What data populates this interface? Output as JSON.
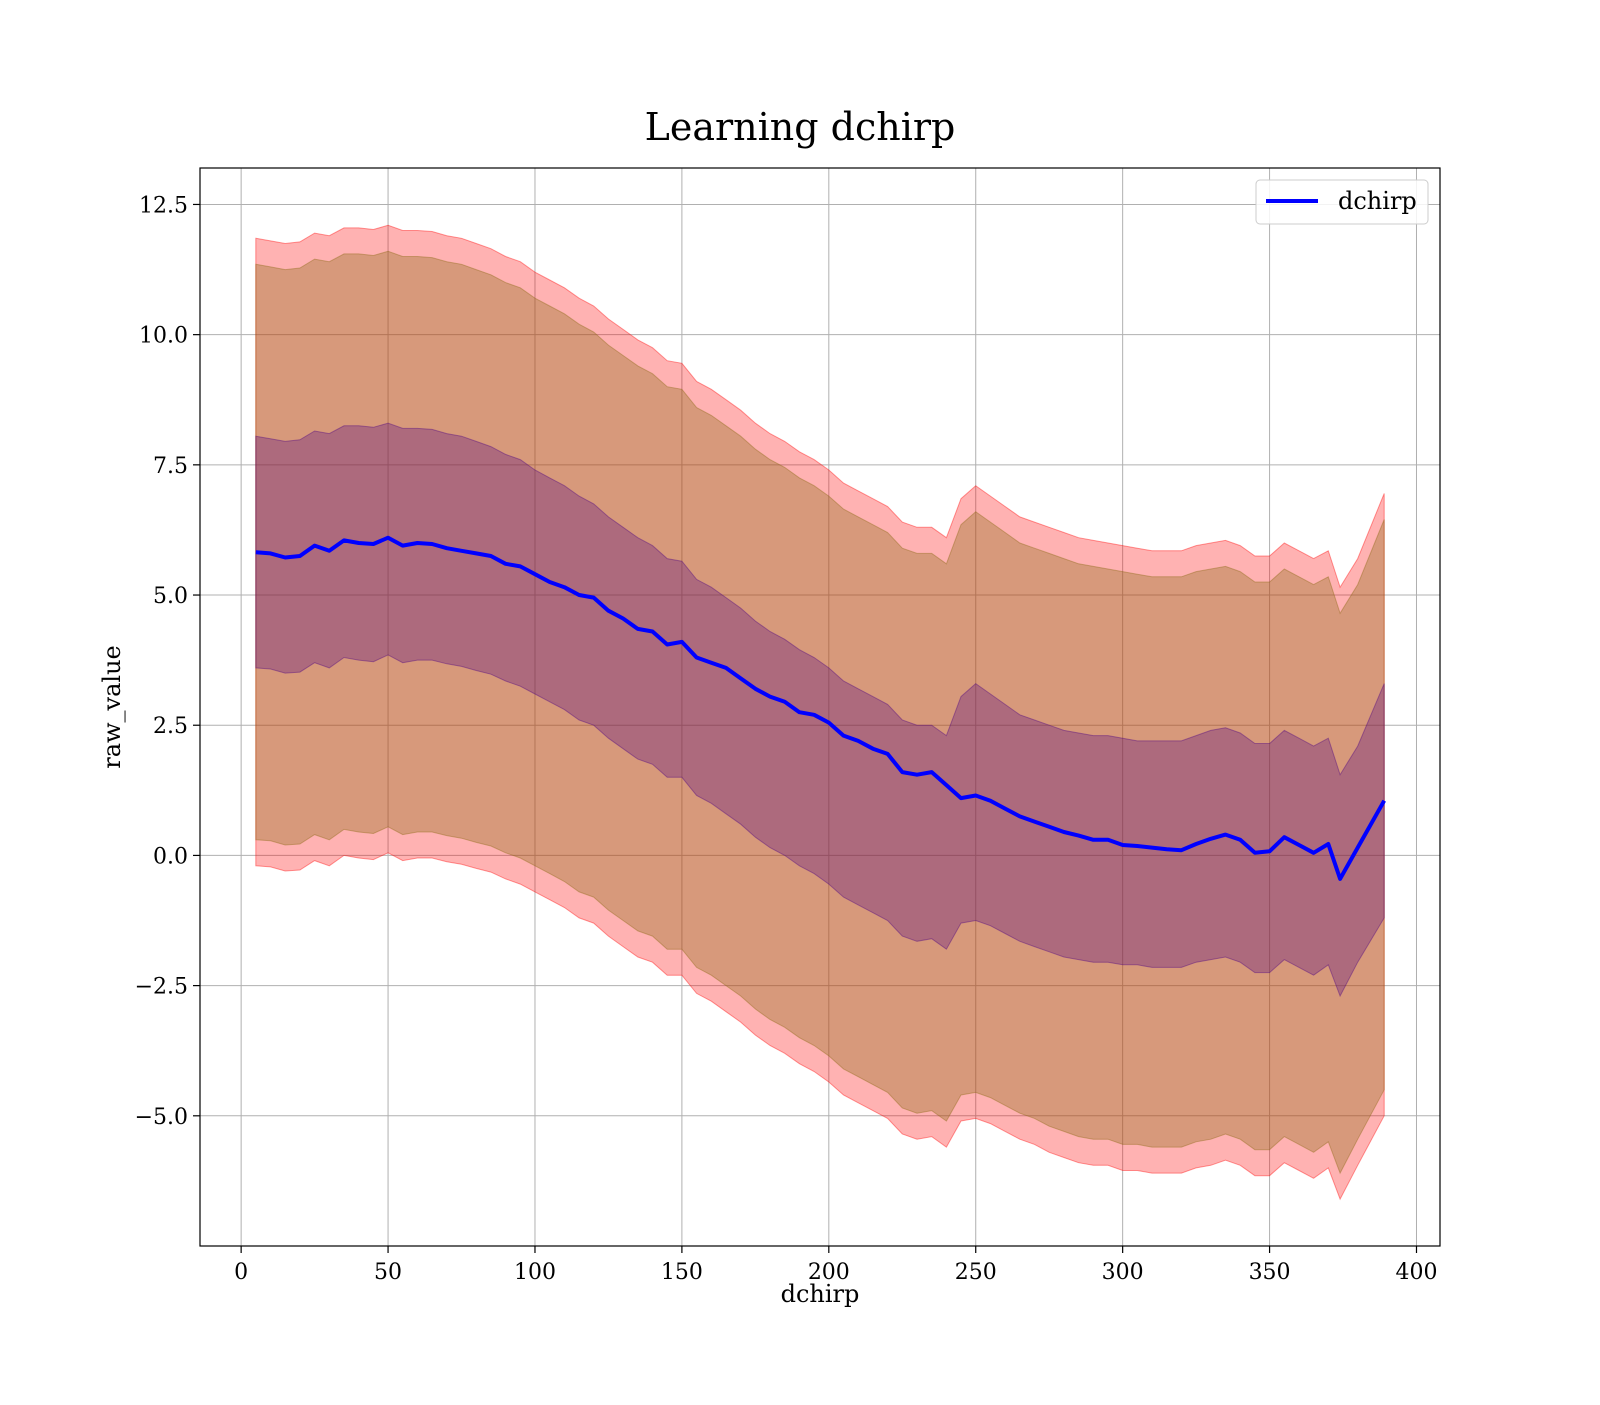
{
  "chart_data": {
    "type": "line",
    "title": "Learning dchirp",
    "xlabel": "dchirp",
    "ylabel": "raw_value",
    "xlim": [
      -14,
      408
    ],
    "ylim": [
      -7.5,
      13.2
    ],
    "xticks": [
      0,
      50,
      100,
      150,
      200,
      250,
      300,
      350,
      400
    ],
    "xtick_labels": [
      "0",
      "50",
      "100",
      "150",
      "200",
      "250",
      "300",
      "350",
      "400"
    ],
    "yticks": [
      -5.0,
      -2.5,
      0.0,
      2.5,
      5.0,
      7.5,
      10.0,
      12.5
    ],
    "ytick_labels": [
      "−5.0",
      "−2.5",
      "0.0",
      "2.5",
      "5.0",
      "7.5",
      "10.0",
      "12.5"
    ],
    "grid": true,
    "legend": {
      "position": "top-right",
      "entries": [
        "dchirp"
      ]
    },
    "colors": {
      "line": "#0000ff",
      "outer_band": "#ff0000",
      "mid_band": "#8b6914",
      "inner_band": "#4b0082"
    },
    "x": [
      5,
      10,
      15,
      20,
      25,
      30,
      35,
      40,
      45,
      50,
      55,
      60,
      65,
      70,
      75,
      80,
      85,
      90,
      95,
      100,
      105,
      110,
      115,
      120,
      125,
      130,
      135,
      140,
      145,
      150,
      155,
      160,
      165,
      170,
      175,
      180,
      185,
      190,
      195,
      200,
      205,
      210,
      215,
      220,
      225,
      230,
      235,
      240,
      245,
      250,
      255,
      260,
      265,
      270,
      275,
      280,
      285,
      290,
      295,
      300,
      305,
      310,
      315,
      320,
      325,
      330,
      335,
      340,
      345,
      350,
      355,
      360,
      365,
      370,
      374,
      380,
      389
    ],
    "series": [
      {
        "name": "dchirp",
        "values": [
          5.82,
          5.8,
          5.72,
          5.75,
          5.95,
          5.85,
          6.05,
          6.0,
          5.98,
          6.1,
          5.95,
          6.0,
          5.98,
          5.9,
          5.85,
          5.8,
          5.75,
          5.6,
          5.55,
          5.4,
          5.25,
          5.15,
          5.0,
          4.95,
          4.7,
          4.55,
          4.35,
          4.3,
          4.05,
          4.1,
          3.8,
          3.7,
          3.6,
          3.4,
          3.2,
          3.05,
          2.95,
          2.75,
          2.7,
          2.55,
          2.3,
          2.2,
          2.05,
          1.95,
          1.6,
          1.55,
          1.6,
          1.35,
          1.1,
          1.15,
          1.05,
          0.9,
          0.75,
          0.65,
          0.55,
          0.45,
          0.38,
          0.3,
          0.3,
          0.2,
          0.18,
          0.15,
          0.12,
          0.1,
          0.22,
          0.32,
          0.4,
          0.3,
          0.05,
          0.08,
          0.35,
          0.2,
          0.05,
          0.22,
          -0.45,
          0.15,
          1.05
        ]
      }
    ],
    "bands": [
      {
        "upper": [
          11.85,
          11.8,
          11.75,
          11.78,
          11.95,
          11.9,
          12.05,
          12.05,
          12.02,
          12.1,
          12.0,
          12.0,
          11.98,
          11.9,
          11.85,
          11.75,
          11.65,
          11.5,
          11.4,
          11.2,
          11.05,
          10.9,
          10.7,
          10.55,
          10.3,
          10.1,
          9.9,
          9.75,
          9.5,
          9.45,
          9.1,
          8.95,
          8.75,
          8.55,
          8.3,
          8.1,
          7.95,
          7.75,
          7.6,
          7.4,
          7.15,
          7.0,
          6.85,
          6.7,
          6.4,
          6.3,
          6.3,
          6.1,
          6.85,
          7.1,
          6.9,
          6.7,
          6.5,
          6.4,
          6.3,
          6.2,
          6.1,
          6.05,
          6.0,
          5.95,
          5.9,
          5.85,
          5.85,
          5.85,
          5.95,
          6.0,
          6.05,
          5.95,
          5.75,
          5.75,
          6.0,
          5.85,
          5.7,
          5.85,
          5.15,
          5.7,
          6.95
        ],
        "lower": [
          -0.2,
          -0.22,
          -0.3,
          -0.28,
          -0.1,
          -0.2,
          0.0,
          -0.05,
          -0.08,
          0.05,
          -0.1,
          -0.05,
          -0.05,
          -0.12,
          -0.17,
          -0.25,
          -0.32,
          -0.45,
          -0.55,
          -0.7,
          -0.85,
          -1.0,
          -1.2,
          -1.3,
          -1.55,
          -1.75,
          -1.95,
          -2.05,
          -2.3,
          -2.3,
          -2.65,
          -2.8,
          -3.0,
          -3.2,
          -3.45,
          -3.65,
          -3.8,
          -4.0,
          -4.15,
          -4.35,
          -4.6,
          -4.75,
          -4.9,
          -5.05,
          -5.35,
          -5.45,
          -5.4,
          -5.6,
          -5.1,
          -5.05,
          -5.15,
          -5.3,
          -5.45,
          -5.55,
          -5.7,
          -5.8,
          -5.9,
          -5.95,
          -5.95,
          -6.05,
          -6.05,
          -6.1,
          -6.1,
          -6.1,
          -6.0,
          -5.95,
          -5.85,
          -5.95,
          -6.15,
          -6.15,
          -5.9,
          -6.05,
          -6.2,
          -6.0,
          -6.6,
          -5.95,
          -5.0
        ]
      },
      {
        "upper": [
          11.35,
          11.3,
          11.25,
          11.28,
          11.45,
          11.4,
          11.55,
          11.55,
          11.52,
          11.6,
          11.5,
          11.5,
          11.48,
          11.4,
          11.35,
          11.25,
          11.15,
          11.0,
          10.9,
          10.7,
          10.55,
          10.4,
          10.2,
          10.05,
          9.8,
          9.6,
          9.4,
          9.25,
          9.0,
          8.95,
          8.6,
          8.45,
          8.25,
          8.05,
          7.8,
          7.6,
          7.45,
          7.25,
          7.1,
          6.9,
          6.65,
          6.5,
          6.35,
          6.2,
          5.9,
          5.8,
          5.8,
          5.6,
          6.35,
          6.6,
          6.4,
          6.2,
          6.0,
          5.9,
          5.8,
          5.7,
          5.6,
          5.55,
          5.5,
          5.45,
          5.4,
          5.35,
          5.35,
          5.35,
          5.45,
          5.5,
          5.55,
          5.45,
          5.25,
          5.25,
          5.5,
          5.35,
          5.2,
          5.35,
          4.65,
          5.2,
          6.45
        ],
        "lower": [
          0.3,
          0.28,
          0.2,
          0.22,
          0.4,
          0.3,
          0.5,
          0.45,
          0.42,
          0.55,
          0.4,
          0.45,
          0.45,
          0.38,
          0.33,
          0.25,
          0.18,
          0.05,
          -0.05,
          -0.2,
          -0.35,
          -0.5,
          -0.7,
          -0.8,
          -1.05,
          -1.25,
          -1.45,
          -1.55,
          -1.8,
          -1.8,
          -2.15,
          -2.3,
          -2.5,
          -2.7,
          -2.95,
          -3.15,
          -3.3,
          -3.5,
          -3.65,
          -3.85,
          -4.1,
          -4.25,
          -4.4,
          -4.55,
          -4.85,
          -4.95,
          -4.9,
          -5.1,
          -4.6,
          -4.55,
          -4.65,
          -4.8,
          -4.95,
          -5.05,
          -5.2,
          -5.3,
          -5.4,
          -5.45,
          -5.45,
          -5.55,
          -5.55,
          -5.6,
          -5.6,
          -5.6,
          -5.5,
          -5.45,
          -5.35,
          -5.45,
          -5.65,
          -5.65,
          -5.4,
          -5.55,
          -5.7,
          -5.5,
          -6.1,
          -5.45,
          -4.5
        ]
      },
      {
        "upper": [
          8.05,
          8.0,
          7.95,
          7.98,
          8.15,
          8.1,
          8.25,
          8.25,
          8.22,
          8.3,
          8.2,
          8.2,
          8.18,
          8.1,
          8.05,
          7.95,
          7.85,
          7.7,
          7.6,
          7.4,
          7.25,
          7.1,
          6.9,
          6.75,
          6.5,
          6.3,
          6.1,
          5.95,
          5.7,
          5.65,
          5.3,
          5.15,
          4.95,
          4.75,
          4.5,
          4.3,
          4.15,
          3.95,
          3.8,
          3.6,
          3.35,
          3.2,
          3.05,
          2.9,
          2.6,
          2.5,
          2.5,
          2.3,
          3.05,
          3.3,
          3.1,
          2.9,
          2.7,
          2.6,
          2.5,
          2.4,
          2.35,
          2.3,
          2.3,
          2.25,
          2.2,
          2.2,
          2.2,
          2.2,
          2.3,
          2.4,
          2.45,
          2.35,
          2.15,
          2.15,
          2.4,
          2.25,
          2.1,
          2.25,
          1.55,
          2.1,
          3.3
        ],
        "lower": [
          3.6,
          3.58,
          3.5,
          3.52,
          3.7,
          3.6,
          3.8,
          3.75,
          3.72,
          3.85,
          3.7,
          3.75,
          3.75,
          3.68,
          3.63,
          3.55,
          3.48,
          3.35,
          3.25,
          3.1,
          2.95,
          2.8,
          2.6,
          2.5,
          2.25,
          2.05,
          1.85,
          1.75,
          1.5,
          1.5,
          1.15,
          1.0,
          0.8,
          0.6,
          0.35,
          0.15,
          0.0,
          -0.2,
          -0.35,
          -0.55,
          -0.8,
          -0.95,
          -1.1,
          -1.25,
          -1.55,
          -1.65,
          -1.6,
          -1.8,
          -1.3,
          -1.25,
          -1.35,
          -1.5,
          -1.65,
          -1.75,
          -1.85,
          -1.95,
          -2.0,
          -2.05,
          -2.05,
          -2.1,
          -2.1,
          -2.15,
          -2.15,
          -2.15,
          -2.05,
          -2.0,
          -1.95,
          -2.05,
          -2.25,
          -2.25,
          -2.0,
          -2.15,
          -2.3,
          -2.1,
          -2.7,
          -2.05,
          -1.2
        ]
      }
    ]
  }
}
